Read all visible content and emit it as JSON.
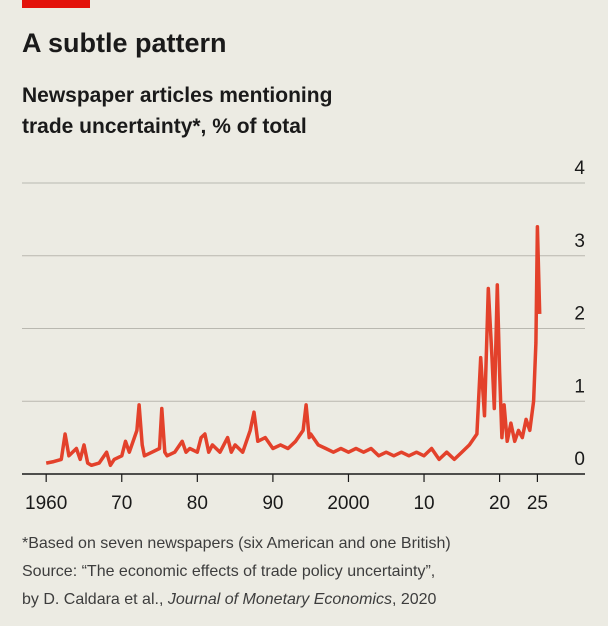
{
  "chart_data": {
    "type": "line",
    "title": "A subtle pattern",
    "subtitle": [
      "Newspaper articles mentioning",
      "trade uncertainty*, % of total"
    ],
    "note": "*Based on seven newspapers (six American and one British)",
    "source": "Source: “The economic effects of trade policy uncertainty”,",
    "source_author": "by D. Caldara et al., ",
    "source_journal": "Journal of Monetary Economics",
    "source_year": ", 2020",
    "xlim": [
      1956.8,
      2031.3
    ],
    "xticks": [
      {
        "value": 1960,
        "label": "1960"
      },
      {
        "value": 1970,
        "label": "70"
      },
      {
        "value": 1980,
        "label": "80"
      },
      {
        "value": 1990,
        "label": "90"
      },
      {
        "value": 2000,
        "label": "2000"
      },
      {
        "value": 2010,
        "label": "10"
      },
      {
        "value": 2020,
        "label": "20"
      },
      {
        "value": 2025,
        "label": "25"
      }
    ],
    "ylim": [
      0,
      4
    ],
    "yticks": [
      0,
      1,
      2,
      3,
      4
    ],
    "grid": true,
    "series": [
      {
        "name": "Trade uncertainty",
        "color": "#e3412b",
        "x": [
          1960,
          1961,
          1962,
          1962.5,
          1963,
          1964,
          1964.5,
          1965,
          1965.5,
          1966,
          1967,
          1968,
          1968.5,
          1969,
          1970,
          1970.5,
          1971,
          1972,
          1972.3,
          1972.7,
          1973,
          1974,
          1975,
          1975.3,
          1975.7,
          1976,
          1977,
          1978,
          1978.5,
          1979,
          1980,
          1980.5,
          1981,
          1981.5,
          1982,
          1983,
          1984,
          1984.5,
          1985,
          1986,
          1987,
          1987.5,
          1988,
          1989,
          1990,
          1991,
          1992,
          1993,
          1994,
          1994.4,
          1994.8,
          1995,
          1996,
          1997,
          1998,
          1999,
          2000,
          2001,
          2002,
          2003,
          2004,
          2005,
          2006,
          2007,
          2008,
          2009,
          2010,
          2011,
          2012,
          2013,
          2014,
          2015,
          2016,
          2017,
          2017.5,
          2018,
          2018.5,
          2019,
          2019.3,
          2019.7,
          2020,
          2020.3,
          2020.6,
          2021,
          2021.5,
          2022,
          2022.5,
          2023,
          2023.5,
          2024,
          2024.5,
          2024.8,
          2025,
          2025.3
        ],
        "values": [
          0.15,
          0.17,
          0.2,
          0.55,
          0.25,
          0.35,
          0.2,
          0.4,
          0.15,
          0.12,
          0.15,
          0.3,
          0.12,
          0.2,
          0.25,
          0.45,
          0.3,
          0.6,
          0.95,
          0.4,
          0.25,
          0.3,
          0.35,
          0.9,
          0.3,
          0.25,
          0.3,
          0.45,
          0.3,
          0.35,
          0.3,
          0.5,
          0.55,
          0.3,
          0.4,
          0.3,
          0.5,
          0.3,
          0.4,
          0.3,
          0.6,
          0.85,
          0.45,
          0.5,
          0.35,
          0.4,
          0.35,
          0.45,
          0.6,
          0.95,
          0.5,
          0.55,
          0.4,
          0.35,
          0.3,
          0.35,
          0.3,
          0.35,
          0.3,
          0.35,
          0.25,
          0.3,
          0.25,
          0.3,
          0.25,
          0.3,
          0.25,
          0.35,
          0.2,
          0.3,
          0.2,
          0.3,
          0.4,
          0.55,
          1.6,
          0.8,
          2.55,
          1.6,
          0.9,
          2.6,
          1.4,
          0.5,
          0.95,
          0.45,
          0.7,
          0.45,
          0.6,
          0.5,
          0.75,
          0.6,
          1.0,
          1.8,
          3.4,
          2.2
        ]
      }
    ]
  }
}
